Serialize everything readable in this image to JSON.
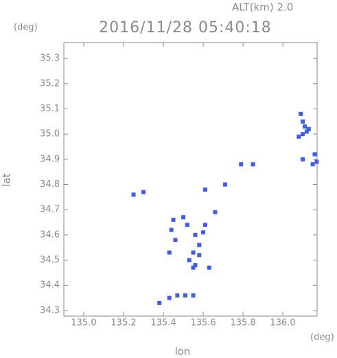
{
  "chart_data": {
    "type": "scatter",
    "title": "2016/11/28 05:40:18",
    "subtitle": "ALT(km)  2.0",
    "x_label": "lon",
    "y_label": "lat",
    "x_unit": "(deg)",
    "y_unit": "(deg)",
    "color": "#3d5cf2",
    "x": [
      136.09,
      136.1,
      136.11,
      136.12,
      136.1,
      136.08,
      136.13,
      136.1,
      136.16,
      136.17,
      136.15,
      135.79,
      135.85,
      135.61,
      135.25,
      135.3,
      135.71,
      135.66,
      135.5,
      135.45,
      135.52,
      135.61,
      135.6,
      135.56,
      135.58,
      135.55,
      135.53,
      135.56,
      135.58,
      135.43,
      135.44,
      135.46,
      135.63,
      135.55,
      135.43,
      135.47,
      135.51,
      135.55,
      135.38
    ],
    "values": [
      35.08,
      35.05,
      35.03,
      35.01,
      35.0,
      34.99,
      35.02,
      34.9,
      34.92,
      34.89,
      34.88,
      34.88,
      34.88,
      34.78,
      34.76,
      34.77,
      34.8,
      34.69,
      34.67,
      34.66,
      34.64,
      34.64,
      34.61,
      34.6,
      34.56,
      34.53,
      34.5,
      34.48,
      34.52,
      34.53,
      34.62,
      34.58,
      34.47,
      34.47,
      34.35,
      34.36,
      34.36,
      34.36,
      34.33
    ],
    "xlim": [
      134.9,
      136.172
    ],
    "ylim": [
      34.278,
      35.363
    ],
    "xticks": [
      {
        "value": 135,
        "label": "135.0"
      },
      135.2,
      135.4,
      135.6,
      135.8,
      {
        "value": 136,
        "label": "136.0"
      }
    ],
    "yticks": [
      34.3,
      34.4,
      34.5,
      34.6,
      34.7,
      34.8,
      34.9,
      {
        "value": 35,
        "label": "35.0"
      },
      35.1,
      35.2,
      35.3
    ]
  }
}
